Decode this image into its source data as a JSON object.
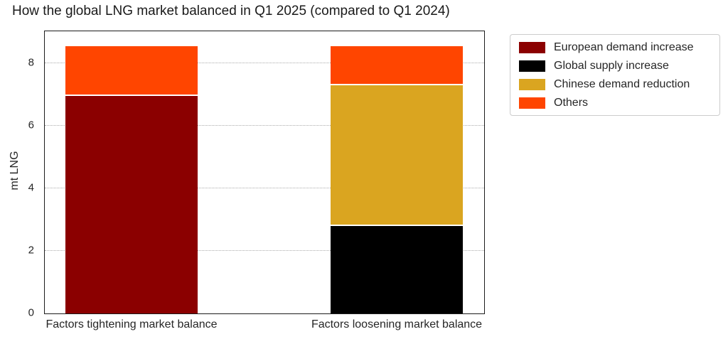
{
  "title": "How the global LNG market balanced in Q1 2025 (compared to Q1 2024)",
  "chart_data": {
    "type": "bar",
    "stacked": true,
    "title": "How the global LNG market balanced in Q1 2025 (compared to Q1 2024)",
    "ylabel": "mt LNG",
    "xlabel": "",
    "categories": [
      "Factors tightening market balance",
      "Factors loosening market balance"
    ],
    "series": [
      {
        "name": "European demand increase",
        "color": "#8B0000",
        "values": [
          7.0,
          0
        ]
      },
      {
        "name": "Global supply increase",
        "color": "#000000",
        "values": [
          0,
          2.85
        ]
      },
      {
        "name": "Chinese demand reduction",
        "color": "#DAA520",
        "values": [
          0,
          4.5
        ]
      },
      {
        "name": "Others",
        "color": "#FF4500",
        "values": [
          1.6,
          1.25
        ]
      }
    ],
    "yticks": [
      0,
      2,
      4,
      6,
      8
    ],
    "ylim": [
      0,
      9
    ],
    "grid": "horizontal-dotted",
    "legend_position": "outside-right-top"
  }
}
